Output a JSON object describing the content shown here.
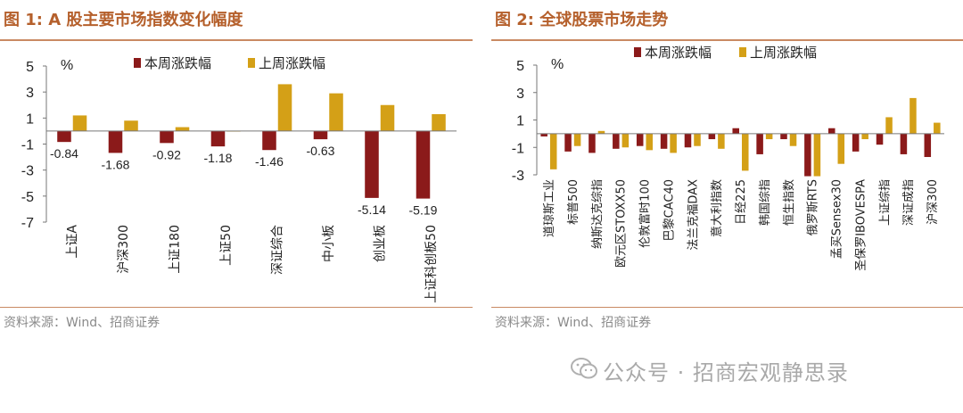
{
  "watermark": {
    "text": "公众号 · 招商宏观静思录",
    "icon": "wechat-icon"
  },
  "chart_data": [
    {
      "type": "bar",
      "title": "图 1:  A 股主要市场指数变化幅度",
      "source": "资料来源：Wind、招商证券",
      "ylabel": "%",
      "ylim": [
        -7,
        5
      ],
      "yticks": [
        5,
        3,
        1,
        -1,
        -3,
        -5,
        -7
      ],
      "categories": [
        "上证A",
        "沪深300",
        "上证180",
        "上证50",
        "深证综合",
        "中小板",
        "创业板",
        "上证科创板50"
      ],
      "series": [
        {
          "name": "本周涨跌幅",
          "color": "#8b1a1a",
          "values": [
            -0.84,
            -1.68,
            -0.92,
            -1.18,
            -1.46,
            -0.63,
            -5.14,
            -5.19
          ],
          "labels": [
            "-0.84",
            "-1.68",
            "-0.92",
            "-1.18",
            "-1.46",
            "-0.63",
            "-5.14",
            "-5.19"
          ]
        },
        {
          "name": "上周涨跌幅",
          "color": "#d4a017",
          "values": [
            1.2,
            0.8,
            0.3,
            0.0,
            3.6,
            2.9,
            2.0,
            1.3
          ]
        }
      ]
    },
    {
      "type": "bar",
      "title": "图 2:  全球股票市场走势",
      "source": "资料来源：Wind、招商证券",
      "ylabel": "%",
      "ylim": [
        -3,
        5
      ],
      "yticks": [
        5,
        3,
        1,
        -1,
        -3
      ],
      "categories": [
        "道琼斯工业",
        "标普500",
        "纳斯达克综指",
        "欧元区STOXX50",
        "伦敦富时100",
        "巴黎CAC40",
        "法兰克福DAX",
        "意大利指数",
        "日经225",
        "韩国综指",
        "恒生指数",
        "俄罗斯RTS",
        "孟买Sensex30",
        "圣保罗IBOVESPA",
        "上证综指",
        "深证成指",
        "沪深300"
      ],
      "series": [
        {
          "name": "本周涨跌幅",
          "color": "#8b1a1a",
          "values": [
            -0.2,
            -1.3,
            -1.4,
            -1.1,
            -0.9,
            -1.1,
            -1.0,
            -0.4,
            0.4,
            -1.5,
            -0.4,
            -3.1,
            0.4,
            -1.3,
            -0.8,
            -1.5,
            -1.7
          ]
        },
        {
          "name": "上周涨跌幅",
          "color": "#d4a017",
          "values": [
            -2.6,
            -0.9,
            0.2,
            -1.0,
            -1.2,
            -1.4,
            -0.9,
            -1.1,
            -2.7,
            -0.4,
            -0.9,
            -3.1,
            -2.2,
            -0.4,
            1.2,
            2.6,
            0.8
          ]
        }
      ]
    }
  ]
}
